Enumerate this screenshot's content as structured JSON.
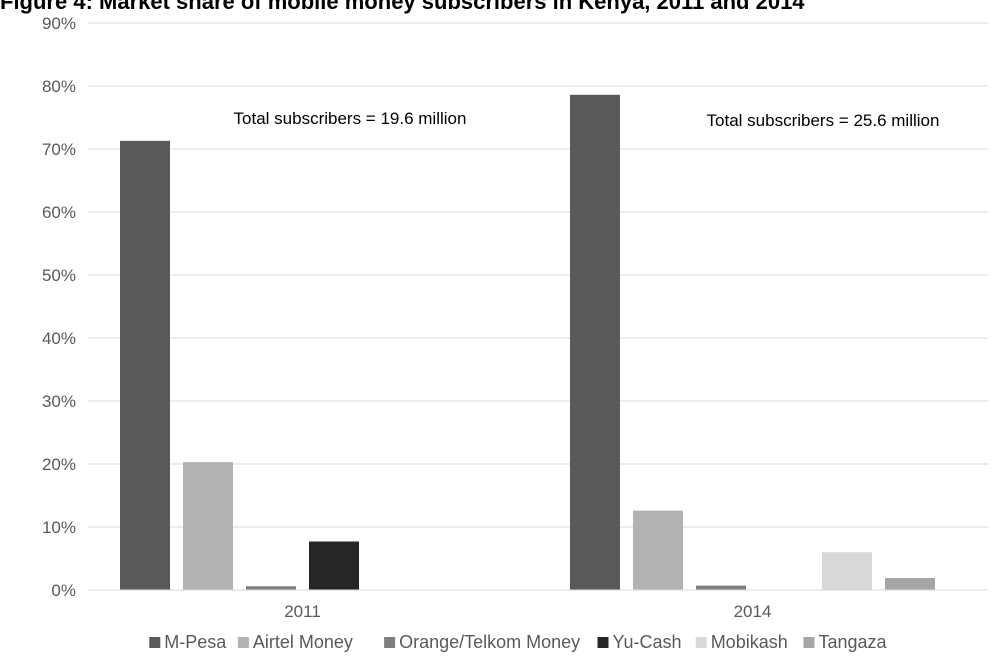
{
  "chart_data": {
    "type": "bar",
    "title": "Figure 4: Market share of mobile money subscribers in Kenya, 2011 and 2014",
    "xlabel": "",
    "ylabel": "",
    "ylim": [
      0,
      90
    ],
    "y_ticks": [
      "0%",
      "10%",
      "20%",
      "30%",
      "40%",
      "50%",
      "60%",
      "70%",
      "80%",
      "90%"
    ],
    "categories": [
      "2011",
      "2014"
    ],
    "series": [
      {
        "name": "M-Pesa",
        "color": "#595959",
        "values": [
          71.3,
          78.6
        ]
      },
      {
        "name": "Airtel Money",
        "color": "#b2b2b2",
        "values": [
          20.3,
          12.6
        ]
      },
      {
        "name": "Orange/Telkom Money",
        "color": "#7f7f7f",
        "values": [
          0.6,
          0.7
        ]
      },
      {
        "name": "Yu-Cash",
        "color": "#262626",
        "values": [
          7.7,
          0
        ]
      },
      {
        "name": "Mobikash",
        "color": "#d9d9d9",
        "values": [
          0,
          6.0
        ]
      },
      {
        "name": "Tangaza",
        "color": "#a6a6a6",
        "values": [
          0,
          1.9
        ]
      }
    ],
    "annotations": [
      "Total subscribers = 19.6 million",
      "Total subscribers = 25.6 million"
    ],
    "grid": true,
    "legend_position": "bottom"
  }
}
